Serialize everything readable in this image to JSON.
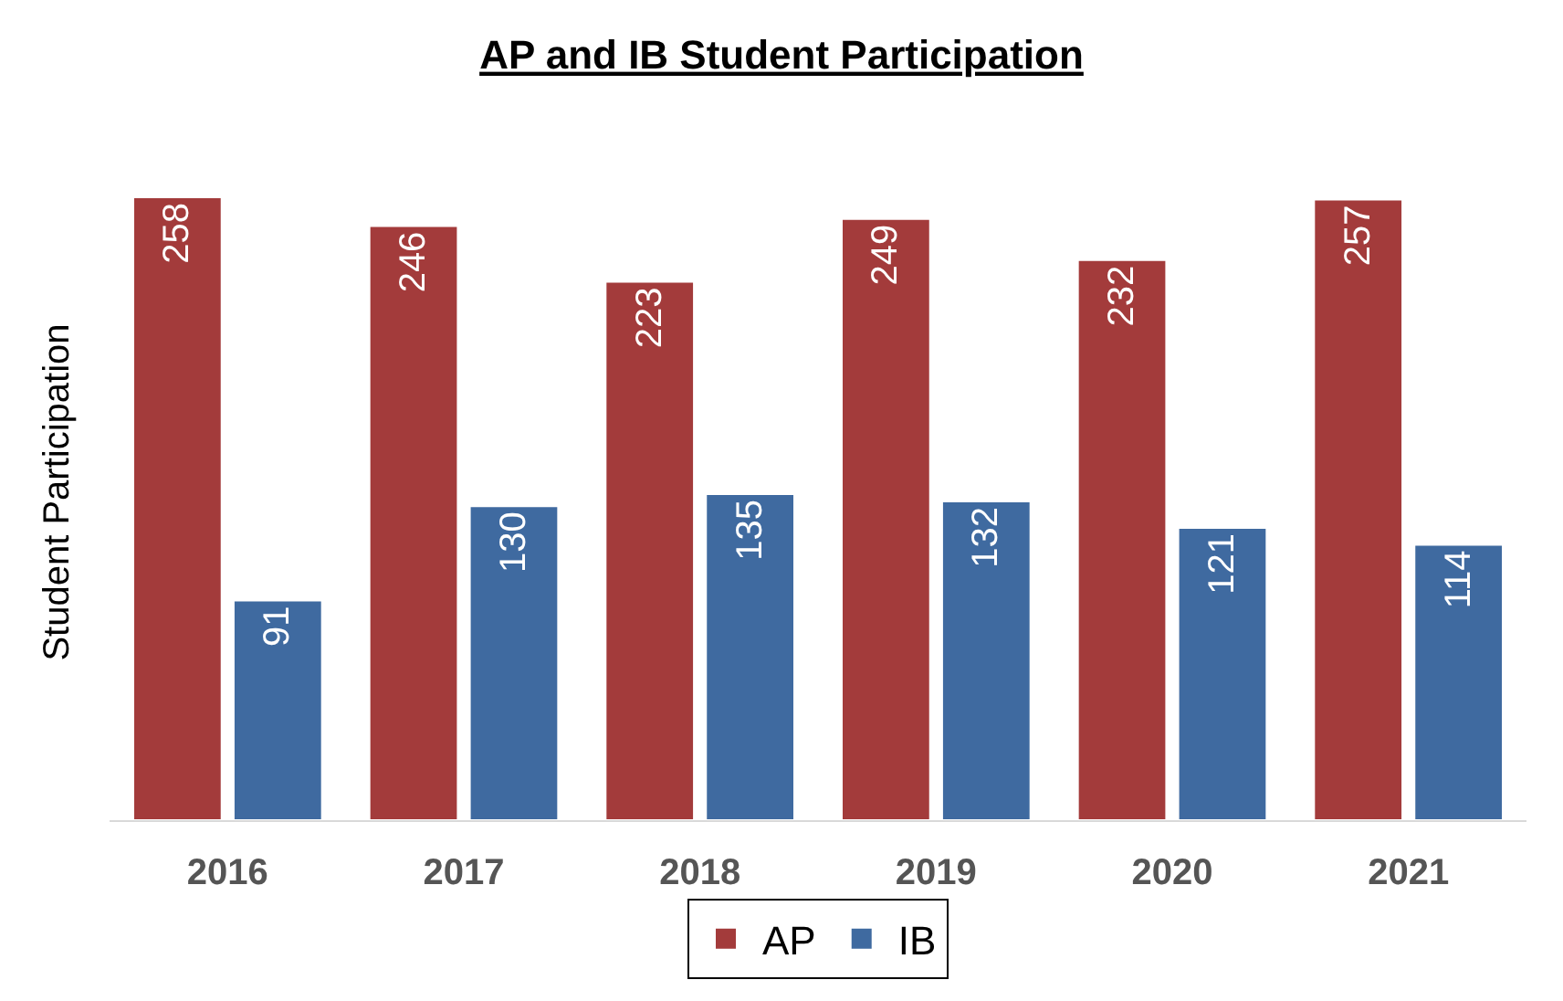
{
  "chart_data": {
    "type": "bar",
    "title": "AP and IB Student Participation",
    "ylabel": "Student Participation",
    "categories": [
      "2016",
      "2017",
      "2018",
      "2019",
      "2020",
      "2021"
    ],
    "series": [
      {
        "name": "AP",
        "color": "#a33b3b",
        "values": [
          258,
          246,
          223,
          249,
          232,
          257
        ]
      },
      {
        "name": "IB",
        "color": "#3f6aa0",
        "values": [
          91,
          130,
          135,
          132,
          121,
          114
        ]
      }
    ],
    "data_labels": true,
    "legend": "bottom",
    "tick_labels": "x"
  }
}
